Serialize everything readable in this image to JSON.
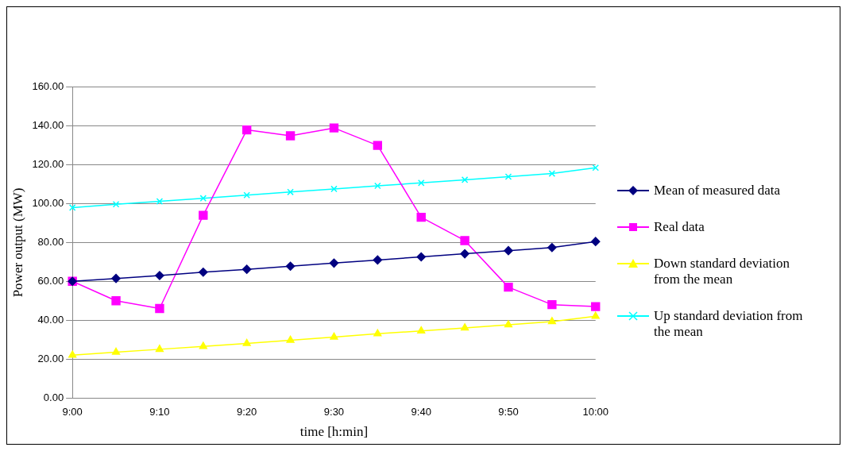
{
  "chart_data": {
    "type": "line",
    "xlabel": "time [h:min]",
    "ylabel": "Power output (MW)",
    "categories": [
      "9:00",
      null,
      "9:10",
      null,
      "9:20",
      null,
      "9:30",
      null,
      "9:40",
      null,
      "9:50",
      null,
      "10:00"
    ],
    "ylim": [
      0,
      160
    ],
    "yticks": [
      {
        "value": 0,
        "label": "0.00"
      },
      {
        "value": 20,
        "label": "20.00"
      },
      {
        "value": 40,
        "label": "40.00"
      },
      {
        "value": 60,
        "label": "60.00"
      },
      {
        "value": 80,
        "label": "80.00"
      },
      {
        "value": 100,
        "label": "100.00"
      },
      {
        "value": 120,
        "label": "120.00"
      },
      {
        "value": 140,
        "label": "140.00"
      },
      {
        "value": 160,
        "label": "160.00"
      }
    ],
    "grid": "y",
    "legend": "right",
    "series": [
      {
        "name": "Mean of measured data",
        "color": "#000080",
        "marker": "diamond",
        "values": [
          60,
          61.5,
          63,
          64.7,
          66.2,
          67.8,
          69.4,
          71,
          72.6,
          74.2,
          75.8,
          77.4,
          80.5
        ]
      },
      {
        "name": "Real data",
        "color": "#ff00ff",
        "marker": "square",
        "values": [
          60,
          50,
          46,
          94,
          138,
          135,
          139,
          130,
          93,
          81,
          57,
          48,
          47
        ]
      },
      {
        "name": "Down standard deviation from the mean",
        "color": "#ffff00",
        "marker": "triangle",
        "values": [
          22,
          23.5,
          25,
          26.5,
          28,
          29.7,
          31.3,
          33,
          34.5,
          36,
          37.6,
          39.3,
          42
        ]
      },
      {
        "name": "Up standard deviation from the mean",
        "color": "#00ffff",
        "marker": "cross",
        "values": [
          98,
          99.7,
          101.2,
          102.8,
          104.4,
          106,
          107.6,
          109.2,
          110.7,
          112.3,
          113.9,
          115.5,
          118.5
        ]
      }
    ]
  }
}
